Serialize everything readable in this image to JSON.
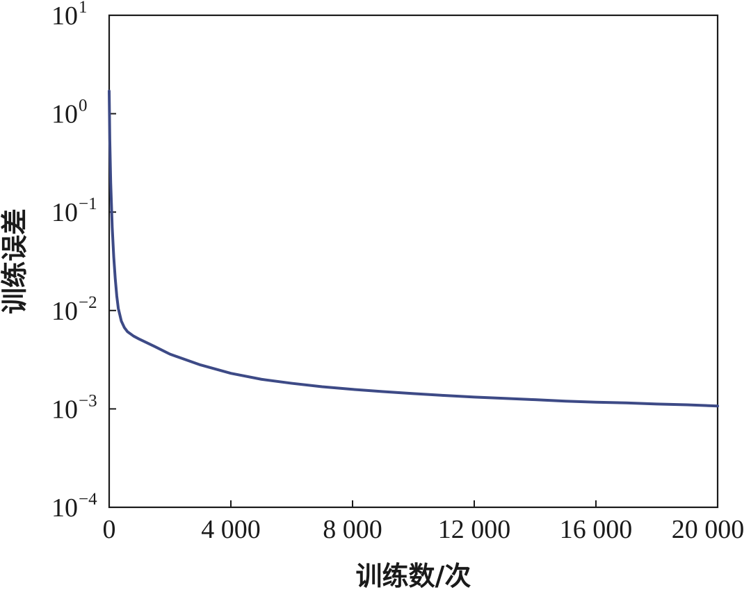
{
  "chart_data": {
    "type": "line",
    "xlabel": "训练数/次",
    "ylabel": "训练误差",
    "xlim": [
      0,
      20000
    ],
    "ylim": [
      0.0001,
      10
    ],
    "yscale": "log",
    "grid": false,
    "x_ticks": [
      0,
      4000,
      8000,
      12000,
      16000,
      20000
    ],
    "x_tick_labels": [
      "0",
      "4 000",
      "8 000",
      "12 000",
      "16 000",
      "20 000"
    ],
    "y_ticks": [
      {
        "value": 10,
        "base": "10",
        "exp": "1"
      },
      {
        "value": 1,
        "base": "10",
        "exp": "0"
      },
      {
        "value": 0.1,
        "base": "10",
        "exp": "−1"
      },
      {
        "value": 0.01,
        "base": "10",
        "exp": "−2"
      },
      {
        "value": 0.001,
        "base": "10",
        "exp": "−3"
      },
      {
        "value": 0.0001,
        "base": "10",
        "exp": "−4"
      }
    ],
    "line_color": "#3d4a86",
    "series": [
      {
        "x": [
          0,
          20,
          50,
          100,
          150,
          200,
          250,
          300,
          400,
          500,
          600,
          800,
          1000,
          1500,
          2000,
          3000,
          4000,
          5000,
          6000,
          7000,
          8000,
          9000,
          10000,
          11000,
          12000,
          13000,
          14000,
          15000,
          16000,
          17000,
          18000,
          19000,
          20000
        ],
        "y": [
          1.7,
          0.55,
          0.2,
          0.07,
          0.035,
          0.021,
          0.014,
          0.0105,
          0.0078,
          0.0067,
          0.0061,
          0.0055,
          0.0051,
          0.0043,
          0.0036,
          0.0028,
          0.0023,
          0.002,
          0.00182,
          0.00168,
          0.00158,
          0.0015,
          0.00143,
          0.00137,
          0.00132,
          0.00128,
          0.00124,
          0.0012,
          0.00117,
          0.00115,
          0.00112,
          0.0011,
          0.00107
        ]
      }
    ]
  }
}
